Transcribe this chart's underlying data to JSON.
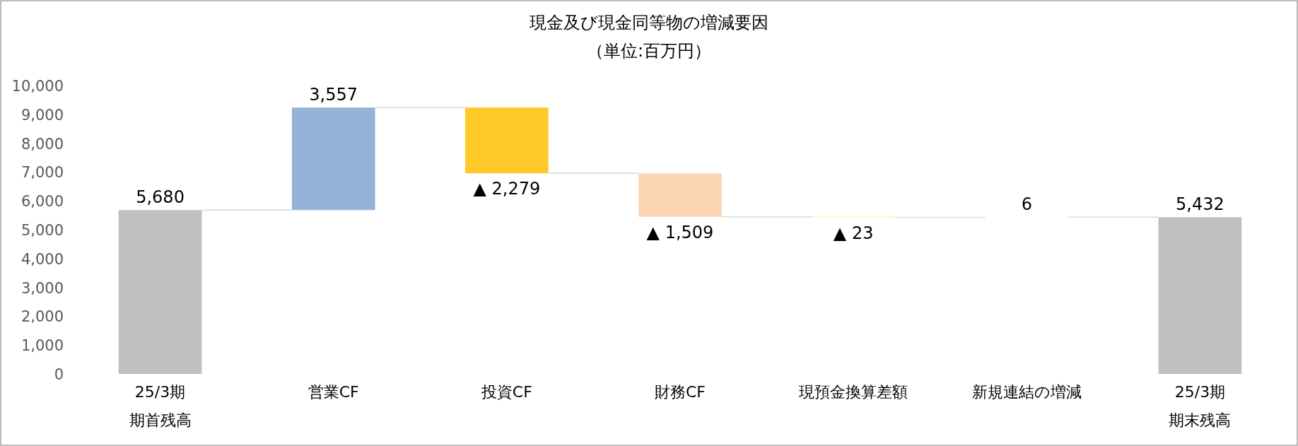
{
  "chart_data": {
    "type": "bar",
    "title": "現金及び現金同等物の増減要因",
    "subtitle": "（単位:百万円）",
    "categories": [
      "25/3期期首残高",
      "営業CF",
      "投資CF",
      "財務CF",
      "現預金換算差額",
      "新規連結の増減",
      "25/3期期末残高"
    ],
    "values": [
      5680,
      3557,
      -2279,
      -1509,
      -23,
      6,
      5432
    ],
    "base": [
      0,
      5680,
      9237,
      6958,
      5449,
      5426,
      0
    ],
    "colors": [
      "#bfbfbf",
      "#95b3d7",
      "#ffca28",
      "#fcd5b5",
      "#ffe699",
      "#ffffff",
      "#bfbfbf"
    ],
    "value_labels": [
      "5,680",
      "3,557",
      "▲ 2,279",
      "▲ 1,509",
      "▲ 23",
      "6",
      "5,432"
    ],
    "ylim": [
      0,
      10000
    ],
    "yticks": [
      0,
      {
        "value": 1000,
        "label": "1,000"
      },
      {
        "value": 2000,
        "label": "2,000"
      },
      {
        "value": 3000,
        "label": "3,000"
      },
      {
        "value": 4000,
        "label": "4,000"
      },
      {
        "value": 5000,
        "label": "5,000"
      },
      {
        "value": 6000,
        "label": "6,000"
      },
      {
        "value": 7000,
        "label": "7,000"
      },
      {
        "value": 8000,
        "label": "8,000"
      },
      {
        "value": 9000,
        "label": "9,000"
      },
      {
        "value": 10000,
        "label": "10,000"
      }
    ]
  }
}
